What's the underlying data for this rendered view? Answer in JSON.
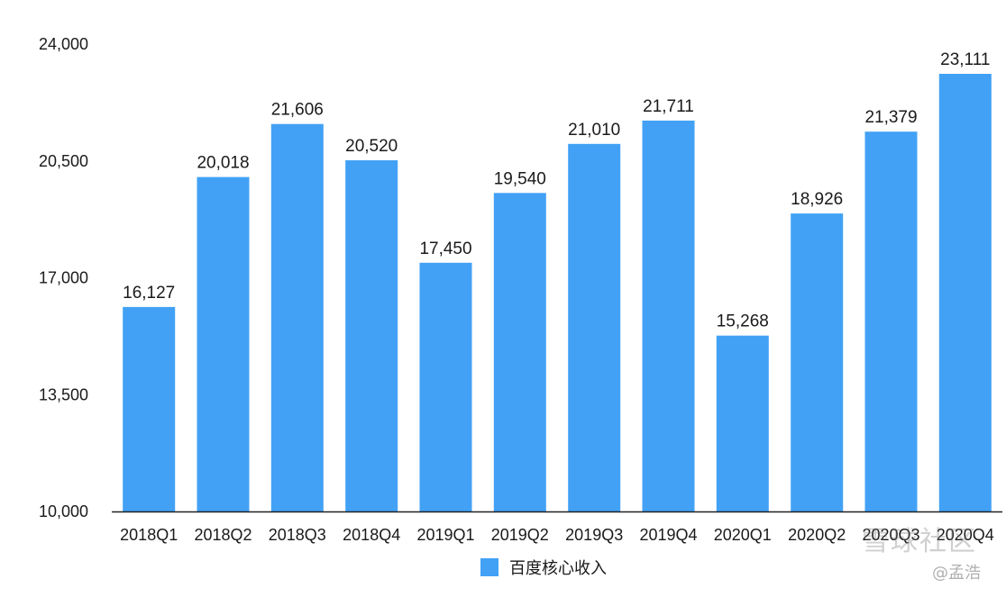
{
  "chart_data": {
    "type": "bar",
    "categories": [
      "2018Q1",
      "2018Q2",
      "2018Q3",
      "2018Q4",
      "2019Q1",
      "2019Q2",
      "2019Q3",
      "2019Q4",
      "2020Q1",
      "2020Q2",
      "2020Q3",
      "2020Q4"
    ],
    "series": [
      {
        "name": "百度核心收入",
        "values": [
          16127,
          20018,
          21606,
          20520,
          17450,
          19540,
          21010,
          21711,
          15268,
          18926,
          21379,
          23111
        ],
        "labels": [
          "16,127",
          "20,018",
          "21,606",
          "20,520",
          "17,450",
          "19,540",
          "21,010",
          "21,711",
          "15,268",
          "18,926",
          "21,379",
          "23,111"
        ],
        "color": "#42a1f5"
      }
    ],
    "ylim": [
      10000,
      24000
    ],
    "yticks": [
      10000,
      13500,
      17000,
      20500,
      24000
    ],
    "ytick_labels": [
      "10,000",
      "13,500",
      "17,000",
      "20,500",
      "24,000"
    ],
    "grid": false,
    "legend_position": "bottom-center",
    "axis_color": "#222222"
  },
  "watermark": {
    "community": "雪球社区",
    "author": "@孟浩"
  }
}
